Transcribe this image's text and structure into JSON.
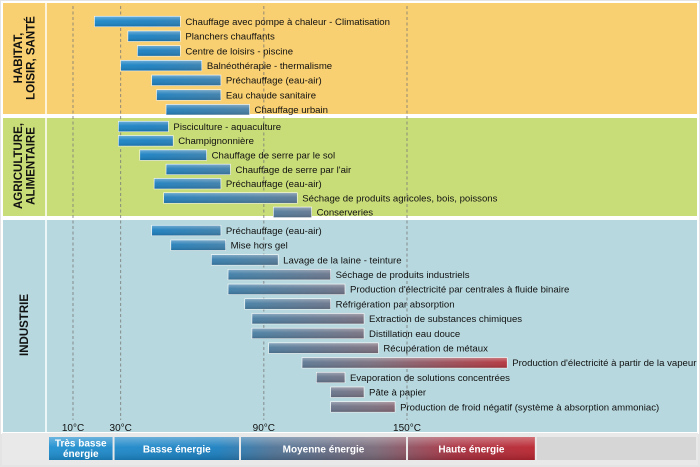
{
  "chart_data": {
    "type": "bar",
    "subtype": "floating-range-bar",
    "x_unit": "°C",
    "xlim": [
      0,
      210
    ],
    "ticks": [
      {
        "value": 10,
        "label": "10°C"
      },
      {
        "value": 30,
        "label": "30°C"
      },
      {
        "value": 90,
        "label": "90°C"
      },
      {
        "value": 150,
        "label": "150°C"
      }
    ],
    "grid": "dashed vertical lines at ticks",
    "colors": {
      "habitat_bg": "#f8cf71",
      "agri_bg": "#c8dc78",
      "industrie_bg": "#b7d8de",
      "low_energy": "#1a7fc0",
      "medium_energy": "#6a6a88",
      "high_energy": "#c8191e"
    },
    "sections": [
      {
        "label": "HABITAT, LOISIR, SANTÉ",
        "bars": [
          {
            "label": "Chauffage avec pompe à chaleur - Climatisation",
            "start": 19,
            "end": 55
          },
          {
            "label": "Planchers chauffants",
            "start": 33,
            "end": 55
          },
          {
            "label": "Centre de loisirs - piscine",
            "start": 37,
            "end": 55
          },
          {
            "label": "Balnéothérapie - thermalisme",
            "start": 30,
            "end": 64
          },
          {
            "label": "Préchauffage (eau-air)",
            "start": 43,
            "end": 72
          },
          {
            "label": "Eau chaude sanitaire",
            "start": 45,
            "end": 72
          },
          {
            "label": "Chauffage urbain",
            "start": 49,
            "end": 84
          }
        ]
      },
      {
        "label": "AGRICULTURE, ALIMENTAIRE",
        "bars": [
          {
            "label": "Pisciculture - aquaculture",
            "start": 29,
            "end": 50
          },
          {
            "label": "Champignonnière",
            "start": 29,
            "end": 52
          },
          {
            "label": "Chauffage de serre par le sol",
            "start": 38,
            "end": 66
          },
          {
            "label": "Chauffage de serre par l'air",
            "start": 49,
            "end": 76
          },
          {
            "label": "Préchauffage (eau-air)",
            "start": 44,
            "end": 72
          },
          {
            "label": "Séchage de produits agricoles, bois, poissons",
            "start": 48,
            "end": 104
          },
          {
            "label": "Conserveries",
            "start": 94,
            "end": 110
          }
        ]
      },
      {
        "label": "INDUSTRIE",
        "bars": [
          {
            "label": "Préchauffage (eau-air)",
            "start": 43,
            "end": 72
          },
          {
            "label": "Mise hors gel",
            "start": 51,
            "end": 74
          },
          {
            "label": "Lavage de la laine - teinture",
            "start": 68,
            "end": 96
          },
          {
            "label": "Séchage de produits industriels",
            "start": 75,
            "end": 118
          },
          {
            "label": "Production d'électricité par centrales à fluide binaire",
            "start": 75,
            "end": 124
          },
          {
            "label": "Réfrigération par absorption",
            "start": 82,
            "end": 118
          },
          {
            "label": "Extraction de substances chimiques",
            "start": 85,
            "end": 132
          },
          {
            "label": "Distillation eau douce",
            "start": 85,
            "end": 132
          },
          {
            "label": "Récupération de métaux",
            "start": 92,
            "end": 138
          },
          {
            "label": "Production d'électricité à partir de la vapeur",
            "start": 106,
            "end": 192
          },
          {
            "label": "Evaporation de solutions concentrées",
            "start": 112,
            "end": 124
          },
          {
            "label": "Pâte à papier",
            "start": 118,
            "end": 132
          },
          {
            "label": "Production de froid négatif (système à absorption ammoniac)",
            "start": 118,
            "end": 145
          }
        ]
      }
    ],
    "energy_categories": [
      {
        "label": "Très basse énergie",
        "range": [
          0,
          27
        ],
        "color": "#1e86c8"
      },
      {
        "label": "Basse énergie",
        "range": [
          27,
          80
        ],
        "color": "#1a7fc0"
      },
      {
        "label": "Moyenne énergie",
        "range": [
          80,
          150
        ],
        "color": "#6a6a88"
      },
      {
        "label": "Haute énergie",
        "range": [
          150,
          204
        ],
        "color": "#c8191e"
      }
    ]
  }
}
